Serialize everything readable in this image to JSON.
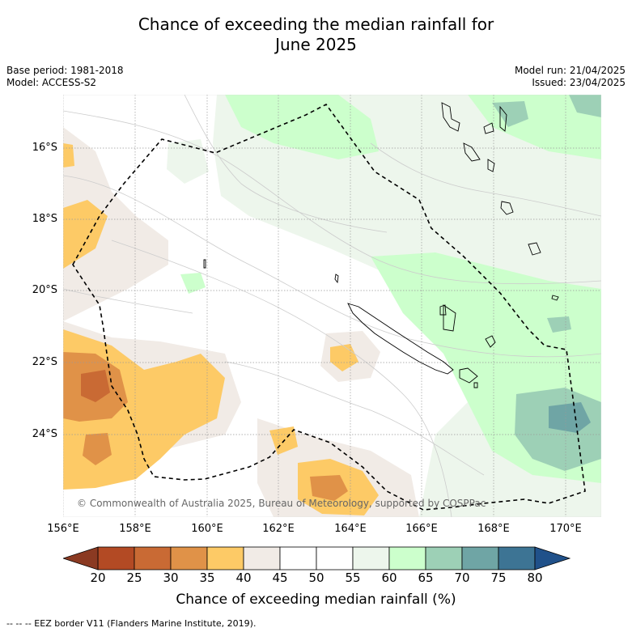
{
  "title_line1": "Chance of exceeding the median rainfall for",
  "title_line2": "June 2025",
  "meta": {
    "base_period": "Base period: 1981-2018",
    "model": "Model: ACCESS-S2",
    "model_run": "Model run: 21/04/2025",
    "issued": "Issued: 23/04/2025"
  },
  "map": {
    "lat_labels": [
      "16°S",
      "18°S",
      "20°S",
      "22°S",
      "24°S"
    ],
    "lon_labels": [
      "156°E",
      "158°E",
      "160°E",
      "162°E",
      "164°E",
      "166°E",
      "168°E",
      "170°E"
    ],
    "copyright": "© Commonwealth of Australia 2025, Bureau of Meteorology, supported by COSPPac"
  },
  "colorbar": {
    "ticks": [
      "20",
      "25",
      "30",
      "35",
      "40",
      "45",
      "50",
      "55",
      "60",
      "65",
      "70",
      "75",
      "80"
    ],
    "colors": [
      "#b34a24",
      "#c96a34",
      "#e09248",
      "#fdca66",
      "#f1ebe6",
      "#ffffff",
      "#ffffff",
      "#edf6ec",
      "#ccffcc",
      "#9dd0b6",
      "#6fa5a5",
      "#3d7494"
    ],
    "extend_low_color": "#8b3a22",
    "extend_high_color": "#20518a",
    "title": "Chance of exceeding median rainfall (%)"
  },
  "footer": "--  --  -- EEZ border V11 (Flanders Marine Institute, 2019)."
}
